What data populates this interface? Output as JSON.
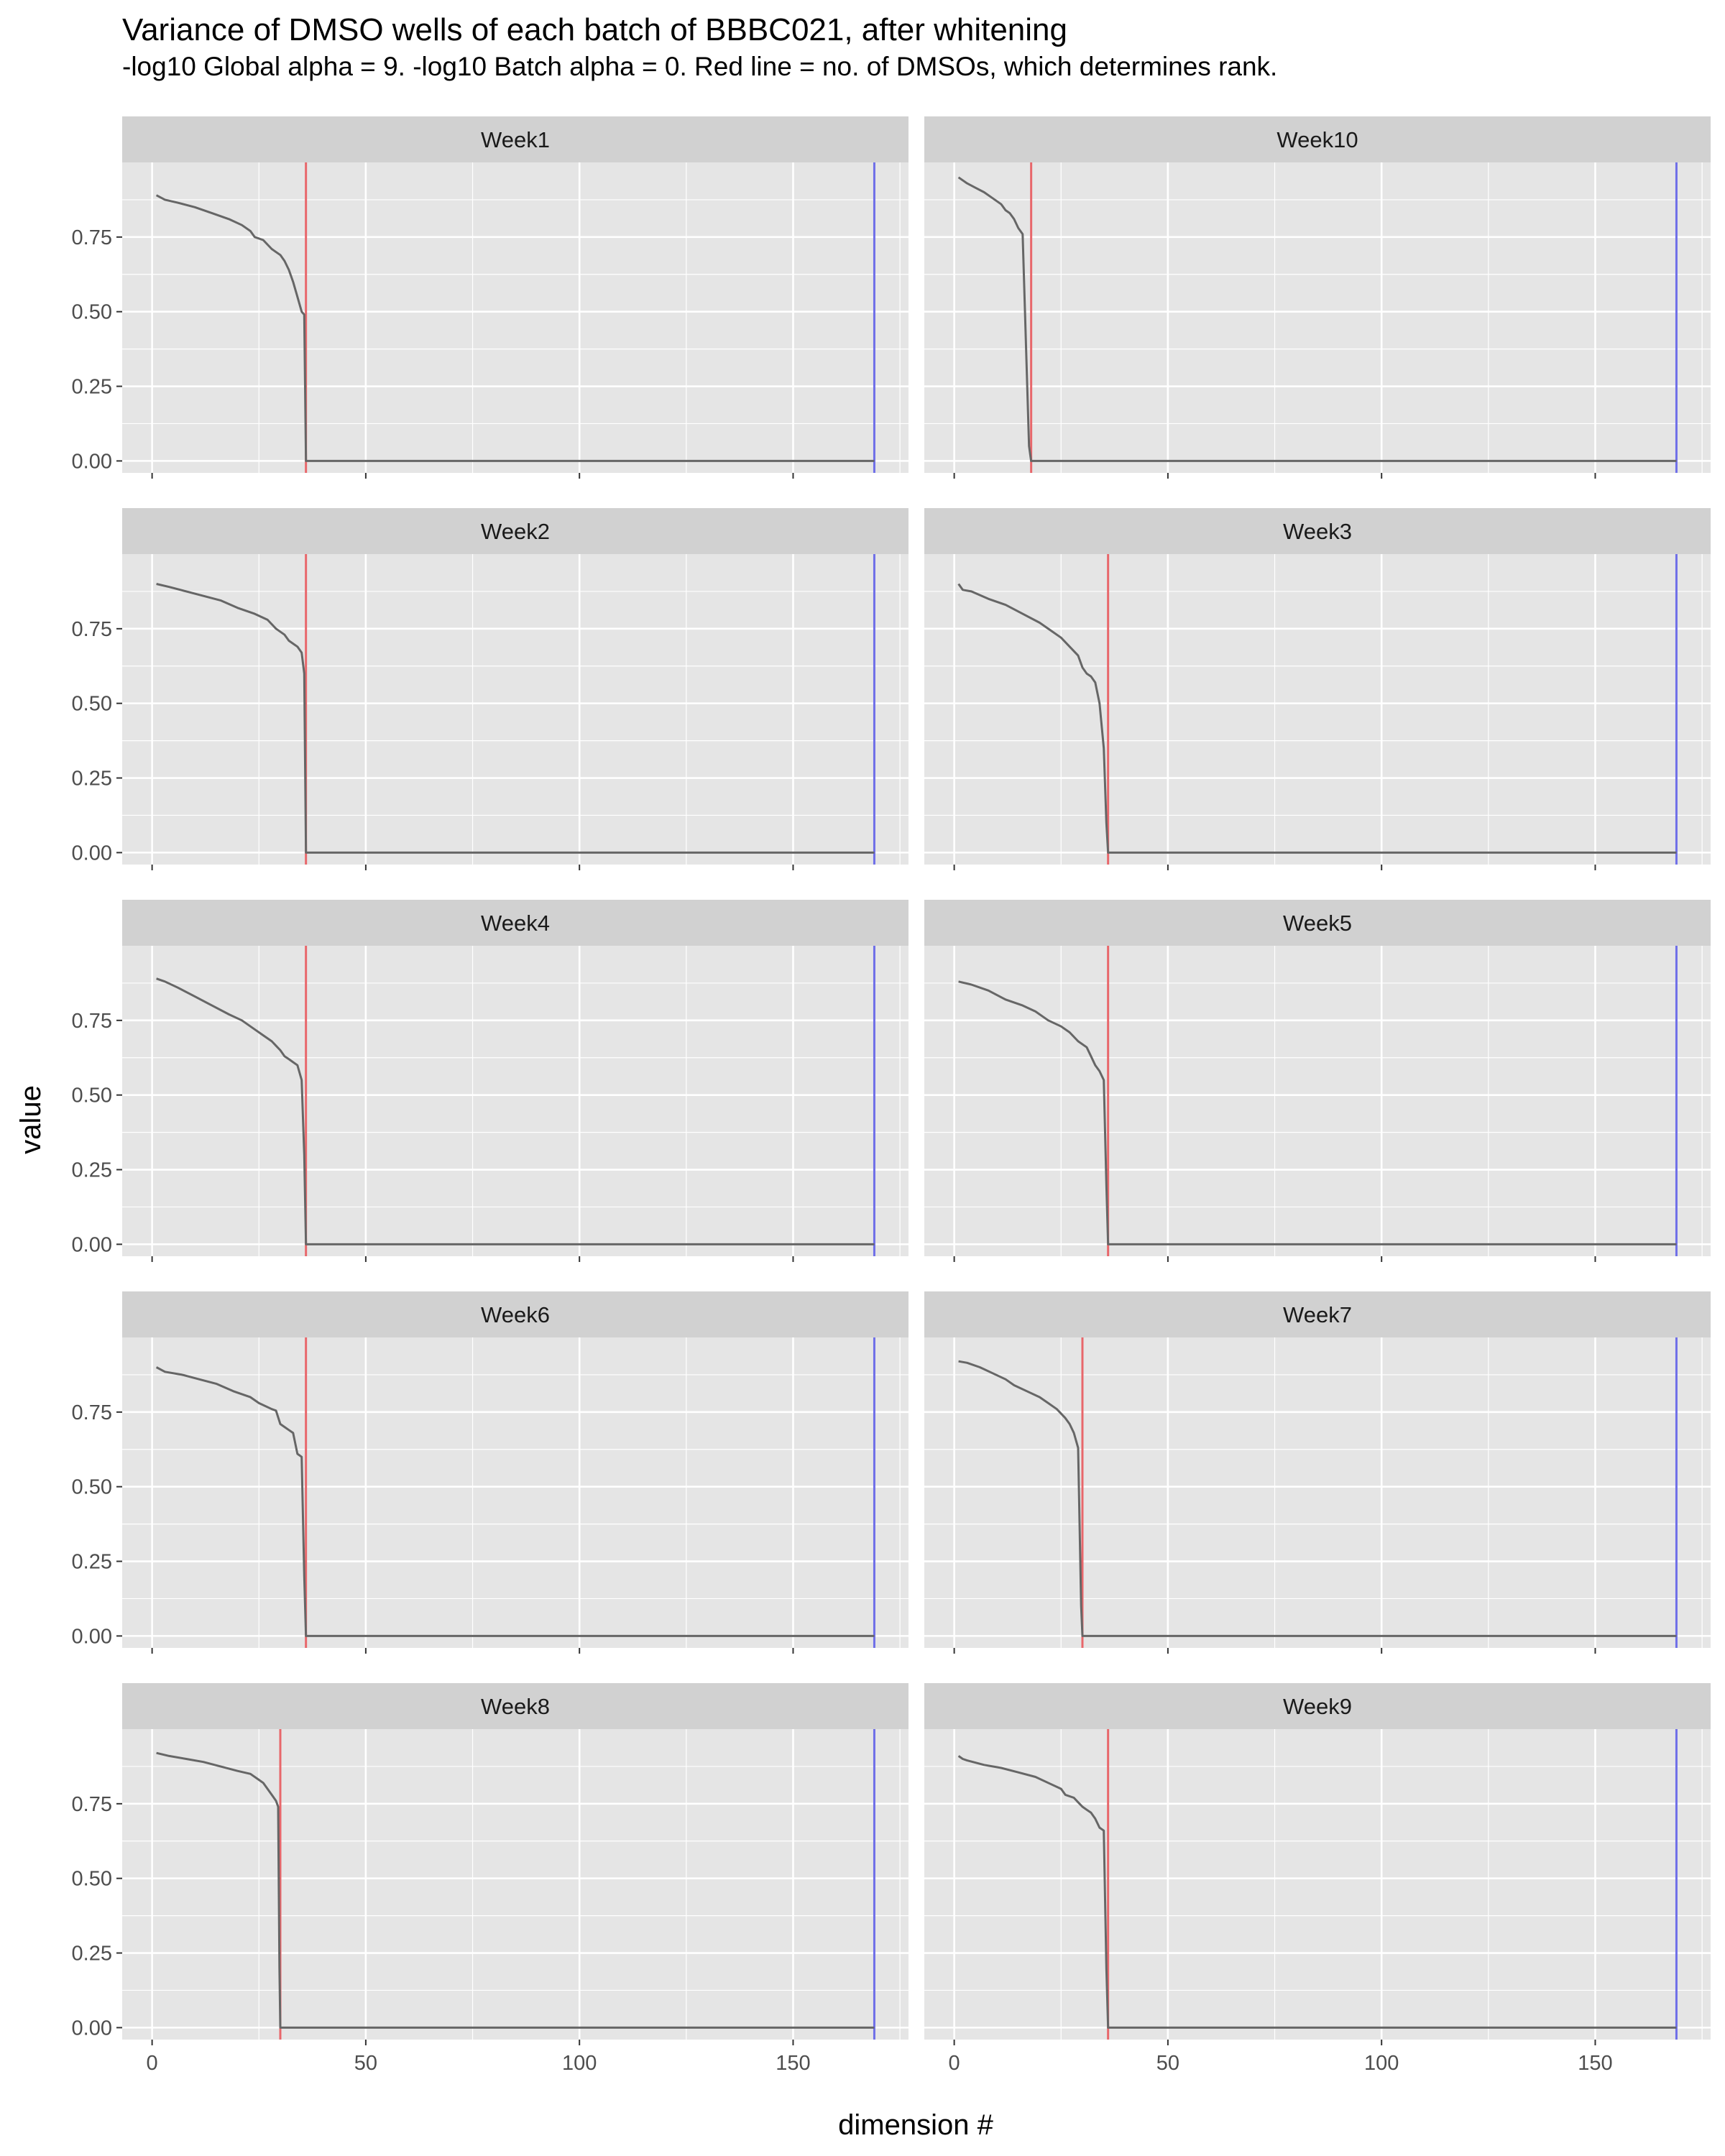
{
  "chart_data": {
    "type": "line",
    "title": "Variance of DMSO wells of each batch of BBBC021, after whitening",
    "subtitle": "-log10 Global alpha = 9. -log10 Batch alpha = 0. Red line = no. of DMSOs, which determines rank.",
    "xlabel": "dimension #",
    "ylabel": "value",
    "xlim": [
      -7,
      177
    ],
    "ylim": [
      -0.04,
      1.0
    ],
    "x_ticks": [
      0,
      50,
      100,
      150
    ],
    "y_ticks": [
      0,
      0.25,
      0.5,
      0.75
    ],
    "y_tick_labels": [
      "0.00",
      "0.25",
      "0.50",
      "0.75"
    ],
    "grid": true,
    "colors": {
      "panel_bg": "#e5e5e5",
      "strip_bg": "#d1d1d1",
      "grid": "#ffffff",
      "series": "#666666",
      "rank_line": "#e8676b",
      "total_line": "#6f6fe8"
    },
    "total_dimensions": 169,
    "facets": [
      {
        "label": "Week1",
        "rank": 36,
        "curve": [
          [
            1,
            0.89
          ],
          [
            3,
            0.875
          ],
          [
            6,
            0.865
          ],
          [
            10,
            0.85
          ],
          [
            14,
            0.83
          ],
          [
            18,
            0.81
          ],
          [
            21,
            0.79
          ],
          [
            23,
            0.77
          ],
          [
            24,
            0.75
          ],
          [
            26,
            0.74
          ],
          [
            28,
            0.71
          ],
          [
            30,
            0.69
          ],
          [
            31,
            0.67
          ],
          [
            32,
            0.64
          ],
          [
            33,
            0.6
          ],
          [
            34,
            0.55
          ],
          [
            35,
            0.5
          ],
          [
            35.6,
            0.49
          ],
          [
            36,
            0.0
          ]
        ]
      },
      {
        "label": "Week10",
        "rank": 18,
        "curve": [
          [
            1,
            0.95
          ],
          [
            3,
            0.93
          ],
          [
            5,
            0.915
          ],
          [
            7,
            0.9
          ],
          [
            9,
            0.88
          ],
          [
            11,
            0.86
          ],
          [
            12,
            0.84
          ],
          [
            13,
            0.83
          ],
          [
            14,
            0.81
          ],
          [
            15,
            0.78
          ],
          [
            16,
            0.76
          ],
          [
            17.5,
            0.05
          ],
          [
            18,
            0.0
          ]
        ]
      },
      {
        "label": "Week2",
        "rank": 36,
        "curve": [
          [
            1,
            0.9
          ],
          [
            4,
            0.89
          ],
          [
            8,
            0.875
          ],
          [
            12,
            0.86
          ],
          [
            16,
            0.845
          ],
          [
            20,
            0.82
          ],
          [
            24,
            0.8
          ],
          [
            27,
            0.78
          ],
          [
            29,
            0.75
          ],
          [
            31,
            0.73
          ],
          [
            32,
            0.71
          ],
          [
            33,
            0.7
          ],
          [
            34,
            0.69
          ],
          [
            35,
            0.67
          ],
          [
            35.6,
            0.6
          ],
          [
            36,
            0.0
          ]
        ]
      },
      {
        "label": "Week3",
        "rank": 36,
        "curve": [
          [
            1,
            0.9
          ],
          [
            2,
            0.88
          ],
          [
            4,
            0.875
          ],
          [
            8,
            0.85
          ],
          [
            12,
            0.83
          ],
          [
            16,
            0.8
          ],
          [
            20,
            0.77
          ],
          [
            23,
            0.74
          ],
          [
            25,
            0.72
          ],
          [
            27,
            0.69
          ],
          [
            29,
            0.66
          ],
          [
            30,
            0.62
          ],
          [
            31,
            0.6
          ],
          [
            32,
            0.59
          ],
          [
            33,
            0.57
          ],
          [
            34,
            0.5
          ],
          [
            35,
            0.35
          ],
          [
            35.6,
            0.1
          ],
          [
            36,
            0.0
          ]
        ]
      },
      {
        "label": "Week4",
        "rank": 36,
        "curve": [
          [
            1,
            0.89
          ],
          [
            3,
            0.88
          ],
          [
            6,
            0.86
          ],
          [
            10,
            0.83
          ],
          [
            14,
            0.8
          ],
          [
            18,
            0.77
          ],
          [
            21,
            0.75
          ],
          [
            24,
            0.72
          ],
          [
            26,
            0.7
          ],
          [
            28,
            0.68
          ],
          [
            30,
            0.65
          ],
          [
            31,
            0.63
          ],
          [
            32,
            0.62
          ],
          [
            33,
            0.61
          ],
          [
            34,
            0.6
          ],
          [
            35,
            0.55
          ],
          [
            35.6,
            0.3
          ],
          [
            36,
            0.0
          ]
        ]
      },
      {
        "label": "Week5",
        "rank": 36,
        "curve": [
          [
            1,
            0.88
          ],
          [
            4,
            0.87
          ],
          [
            8,
            0.85
          ],
          [
            12,
            0.82
          ],
          [
            16,
            0.8
          ],
          [
            19,
            0.78
          ],
          [
            22,
            0.75
          ],
          [
            25,
            0.73
          ],
          [
            27,
            0.71
          ],
          [
            29,
            0.68
          ],
          [
            31,
            0.66
          ],
          [
            32,
            0.63
          ],
          [
            33,
            0.6
          ],
          [
            34,
            0.58
          ],
          [
            35,
            0.55
          ],
          [
            35.6,
            0.2
          ],
          [
            36,
            0.0
          ]
        ]
      },
      {
        "label": "Week6",
        "rank": 36,
        "curve": [
          [
            1,
            0.9
          ],
          [
            3,
            0.885
          ],
          [
            7,
            0.875
          ],
          [
            11,
            0.86
          ],
          [
            15,
            0.845
          ],
          [
            19,
            0.82
          ],
          [
            23,
            0.8
          ],
          [
            25,
            0.78
          ],
          [
            28,
            0.76
          ],
          [
            29,
            0.755
          ],
          [
            30,
            0.71
          ],
          [
            31,
            0.7
          ],
          [
            32,
            0.69
          ],
          [
            33,
            0.68
          ],
          [
            34,
            0.61
          ],
          [
            35,
            0.6
          ],
          [
            35.6,
            0.2
          ],
          [
            36,
            0.0
          ]
        ]
      },
      {
        "label": "Week7",
        "rank": 30,
        "curve": [
          [
            1,
            0.92
          ],
          [
            3,
            0.915
          ],
          [
            6,
            0.9
          ],
          [
            9,
            0.88
          ],
          [
            12,
            0.86
          ],
          [
            14,
            0.84
          ],
          [
            17,
            0.82
          ],
          [
            20,
            0.8
          ],
          [
            22,
            0.78
          ],
          [
            24,
            0.76
          ],
          [
            26,
            0.73
          ],
          [
            27,
            0.71
          ],
          [
            28,
            0.68
          ],
          [
            29,
            0.63
          ],
          [
            29.7,
            0.1
          ],
          [
            30,
            0.0
          ]
        ]
      },
      {
        "label": "Week8",
        "rank": 30,
        "curve": [
          [
            1,
            0.92
          ],
          [
            4,
            0.91
          ],
          [
            8,
            0.9
          ],
          [
            12,
            0.89
          ],
          [
            16,
            0.875
          ],
          [
            20,
            0.86
          ],
          [
            23,
            0.85
          ],
          [
            25,
            0.83
          ],
          [
            26,
            0.82
          ],
          [
            27,
            0.8
          ],
          [
            28,
            0.78
          ],
          [
            29,
            0.76
          ],
          [
            29.5,
            0.74
          ],
          [
            29.8,
            0.2
          ],
          [
            30,
            0.0
          ]
        ]
      },
      {
        "label": "Week9",
        "rank": 36,
        "curve": [
          [
            1,
            0.91
          ],
          [
            2,
            0.9
          ],
          [
            3,
            0.895
          ],
          [
            7,
            0.88
          ],
          [
            11,
            0.87
          ],
          [
            15,
            0.855
          ],
          [
            19,
            0.84
          ],
          [
            22,
            0.82
          ],
          [
            25,
            0.8
          ],
          [
            26,
            0.78
          ],
          [
            28,
            0.77
          ],
          [
            29,
            0.755
          ],
          [
            30,
            0.74
          ],
          [
            31,
            0.73
          ],
          [
            32,
            0.72
          ],
          [
            33,
            0.7
          ],
          [
            34,
            0.67
          ],
          [
            35,
            0.66
          ],
          [
            35.6,
            0.2
          ],
          [
            36,
            0.0
          ]
        ]
      }
    ]
  }
}
